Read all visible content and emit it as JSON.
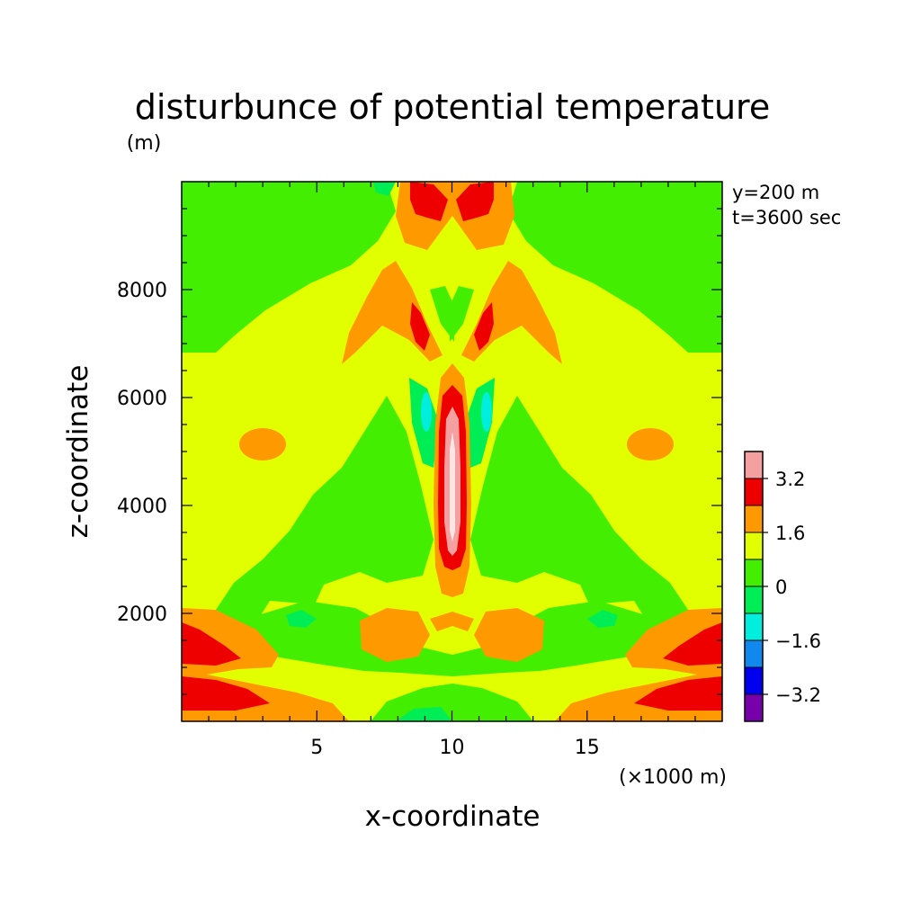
{
  "chart_data": {
    "type": "heatmap",
    "title": "disturbunce of potential temperature",
    "ylabel": "z-coordinate",
    "yunit": "(m)",
    "xlabel": "x-coordinate",
    "xunit": "(×1000 m)",
    "xlim": [
      0,
      20
    ],
    "ylim": [
      0,
      10000
    ],
    "x_ticks": [
      5,
      10,
      15
    ],
    "y_ticks": [
      2000,
      4000,
      6000,
      8000
    ],
    "annotations": [
      "y=200 m",
      "t=3600 sec"
    ],
    "colorbar": {
      "levels": [
        "3.2",
        "1.6",
        "0",
        "-1.6",
        "-3.2"
      ],
      "colors": [
        "#f4a0a0",
        "#ee0000",
        "#ff9900",
        "#e2ff00",
        "#44ee00",
        "#00ee55",
        "#00eedd",
        "#1188ee",
        "#0000ee",
        "#7700aa"
      ]
    },
    "field_bands": [
      {
        "level": "3.2 to 4.0",
        "description": "core of central plume",
        "z_range": [
          3000,
          5800
        ],
        "x_center": 10.1
      },
      {
        "level": "2.4 to 3.2",
        "regions": [
          "central plume",
          "low-level corners",
          "upper lobes"
        ]
      },
      {
        "level": "1.6 to 2.4",
        "regions": [
          "plume surround",
          "bubbles near z=5000 at x=3.6 and x=17",
          "low cells near z=1600"
        ]
      },
      {
        "level": "0.8 to 1.6",
        "regions": [
          "background"
        ]
      },
      {
        "level": "0 to 0.8",
        "regions": [
          "upper corners above z=6800",
          "middle wings",
          "near-surface band"
        ]
      },
      {
        "level": "-0.8 to 0",
        "regions": [
          "flanks of plume",
          "patches near z=1800"
        ]
      },
      {
        "level": "-1.6 to -0.8",
        "regions": [
          "narrow cores beside plume near z=5500"
        ]
      }
    ]
  }
}
